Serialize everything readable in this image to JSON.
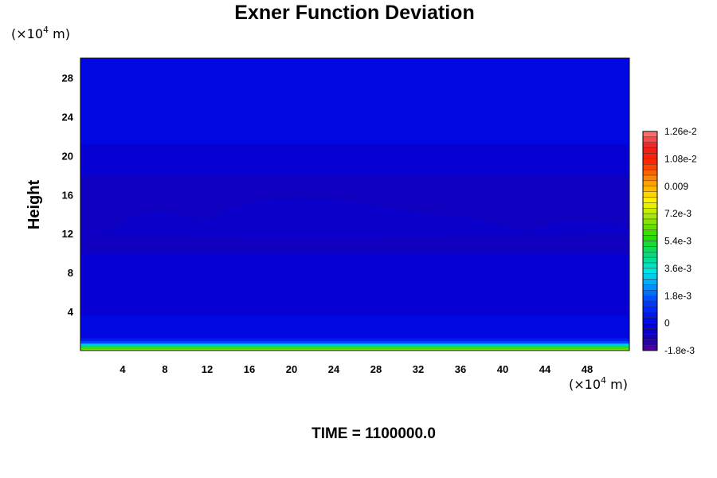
{
  "chart_data": {
    "type": "heatmap",
    "title": "Exner Function Deviation",
    "ylabel": "Height",
    "xlabel": "",
    "x_unit": [
      "(×10",
      "4",
      " m)"
    ],
    "y_unit": [
      "(×10",
      "4",
      " m)"
    ],
    "x_ticks": [
      4,
      8,
      12,
      16,
      20,
      24,
      28,
      32,
      36,
      40,
      44,
      48
    ],
    "y_ticks": [
      4,
      8,
      12,
      16,
      20,
      24,
      28
    ],
    "xlim": [
      0,
      52
    ],
    "ylim": [
      0,
      30
    ],
    "bands": [
      {
        "y0": 0.0,
        "y1": 0.15,
        "value": 0.0075
      },
      {
        "y0": 0.15,
        "y1": 0.35,
        "value": 0.006
      },
      {
        "y0": 0.35,
        "y1": 0.55,
        "value": 0.0045
      },
      {
        "y0": 0.55,
        "y1": 0.75,
        "value": 0.003
      },
      {
        "y0": 0.75,
        "y1": 1.0,
        "value": 0.0015
      },
      {
        "y0": 1.0,
        "y1": 1.3,
        "value": 0.0006
      },
      {
        "y0": 1.3,
        "y1": 3.7,
        "value": 0.0001
      },
      {
        "y0": 3.7,
        "y1": 10.0,
        "value": -0.0003
      },
      {
        "y0": 10.0,
        "y1": 18.0,
        "value": -0.0007
      },
      {
        "y0": 18.0,
        "y1": 21.2,
        "value": -0.0003
      },
      {
        "y0": 21.2,
        "y1": 30.0,
        "value": 0.0001
      }
    ],
    "inner_contour": {
      "value": -0.0005,
      "upper": [
        [
          0,
          12.2
        ],
        [
          3,
          12.5
        ],
        [
          5,
          13.8
        ],
        [
          8,
          14.2
        ],
        [
          12,
          13.5
        ],
        [
          14,
          14.5
        ],
        [
          18,
          15.5
        ],
        [
          24,
          15.5
        ],
        [
          30,
          14.5
        ],
        [
          33,
          14
        ],
        [
          37,
          13.6
        ],
        [
          40,
          12.9
        ],
        [
          42,
          12.3
        ],
        [
          44,
          12.8
        ],
        [
          46,
          13.3
        ],
        [
          50,
          13.2
        ],
        [
          52,
          12.6
        ]
      ],
      "lower": [
        [
          52,
          12.0
        ],
        [
          40,
          11.8
        ],
        [
          30,
          11.6
        ],
        [
          22,
          11.5
        ],
        [
          14,
          11.6
        ],
        [
          6,
          11.8
        ],
        [
          0,
          12.0
        ]
      ]
    },
    "colorbar": {
      "min": -0.0018,
      "max": 0.0126,
      "labels": [
        {
          "text": "1.26e-2",
          "value": 0.0126
        },
        {
          "text": "1.08e-2",
          "value": 0.0108
        },
        {
          "text": "0.009",
          "value": 0.009
        },
        {
          "text": "7.2e-3",
          "value": 0.0072
        },
        {
          "text": "5.4e-3",
          "value": 0.0054
        },
        {
          "text": "3.6e-3",
          "value": 0.0036
        },
        {
          "text": "1.8e-3",
          "value": 0.0018
        },
        {
          "text": "0",
          "value": 0.0
        },
        {
          "text": "-1.8e-3",
          "value": -0.0018
        }
      ],
      "levels": 40
    },
    "footer": "TIME = 1100000.0"
  }
}
